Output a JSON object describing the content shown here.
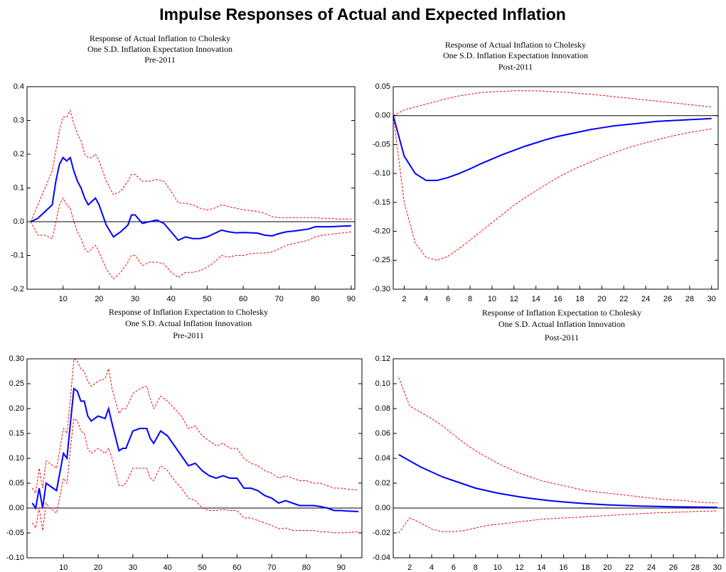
{
  "title": "Impulse Responses of Actual and Expected Inflation",
  "chart_data": [
    {
      "type": "line",
      "title_lines": [
        "Response of Actual Inflation to Cholesky",
        "One S.D. Inflation Expectation Innovation",
        "Pre-2011"
      ],
      "x": [
        1,
        3,
        5,
        7,
        8,
        9,
        10,
        11,
        12,
        13,
        14,
        15,
        16,
        17,
        18,
        19,
        20,
        22,
        24,
        26,
        28,
        29,
        30,
        32,
        34,
        36,
        38,
        40,
        42,
        44,
        46,
        48,
        50,
        52,
        54,
        56,
        58,
        60,
        62,
        64,
        66,
        68,
        70,
        72,
        74,
        76,
        78,
        80,
        82,
        84,
        86,
        88,
        90
      ],
      "series": [
        {
          "color": "#ff0000",
          "dash": true,
          "values": [
            0,
            0.05,
            0.1,
            0.15,
            0.21,
            0.27,
            0.31,
            0.31,
            0.33,
            0.29,
            0.26,
            0.24,
            0.2,
            0.19,
            0.19,
            0.2,
            0.18,
            0.12,
            0.08,
            0.09,
            0.12,
            0.14,
            0.14,
            0.12,
            0.12,
            0.125,
            0.12,
            0.09,
            0.055,
            0.055,
            0.05,
            0.04,
            0.035,
            0.04,
            0.05,
            0.045,
            0.04,
            0.035,
            0.033,
            0.03,
            0.025,
            0.015,
            0.012,
            0.012,
            0.012,
            0.012,
            0.012,
            0.012,
            0.01,
            0.01,
            0.008,
            0.008,
            0.008
          ]
        },
        {
          "color": "#ff0000",
          "dash": true,
          "values": [
            0,
            -0.04,
            -0.04,
            -0.05,
            0,
            0.05,
            0.07,
            0.05,
            0.04,
            0,
            -0.03,
            -0.05,
            -0.08,
            -0.09,
            -0.08,
            -0.07,
            -0.09,
            -0.14,
            -0.17,
            -0.15,
            -0.12,
            -0.1,
            -0.1,
            -0.13,
            -0.12,
            -0.12,
            -0.125,
            -0.15,
            -0.165,
            -0.15,
            -0.15,
            -0.145,
            -0.135,
            -0.12,
            -0.1,
            -0.105,
            -0.1,
            -0.1,
            -0.095,
            -0.093,
            -0.093,
            -0.09,
            -0.08,
            -0.07,
            -0.065,
            -0.06,
            -0.055,
            -0.045,
            -0.04,
            -0.038,
            -0.035,
            -0.033,
            -0.03
          ]
        },
        {
          "color": "#0000ff",
          "dash": false,
          "values": [
            0,
            0.01,
            0.03,
            0.05,
            0.12,
            0.17,
            0.19,
            0.18,
            0.19,
            0.15,
            0.12,
            0.1,
            0.07,
            0.05,
            0.06,
            0.07,
            0.05,
            -0.01,
            -0.045,
            -0.03,
            -0.01,
            0.02,
            0.02,
            -0.005,
            0,
            0.005,
            -0.005,
            -0.03,
            -0.055,
            -0.045,
            -0.05,
            -0.05,
            -0.045,
            -0.035,
            -0.025,
            -0.03,
            -0.033,
            -0.032,
            -0.033,
            -0.034,
            -0.04,
            -0.042,
            -0.035,
            -0.03,
            -0.028,
            -0.025,
            -0.022,
            -0.015,
            -0.015,
            -0.015,
            -0.014,
            -0.013,
            -0.012
          ]
        }
      ],
      "xlim": [
        0,
        91
      ],
      "xticks": [
        10,
        20,
        30,
        40,
        50,
        60,
        70,
        80,
        90
      ],
      "ylim": [
        -0.2,
        0.4
      ],
      "yticks": [
        0.4,
        0.3,
        0.2,
        0.1,
        {
          "value": 0,
          "label": "0.0"
        },
        -0.1,
        -0.2
      ],
      "zero_line": true
    },
    {
      "type": "line",
      "title_lines": [
        "Response of Actual Inflation to Cholesky",
        "One S.D. Inflation Expectation Innovation",
        "Post-2011"
      ],
      "x": [
        1,
        2,
        3,
        4,
        5,
        6,
        7,
        8,
        9,
        10,
        11,
        12,
        13,
        14,
        15,
        16,
        17,
        18,
        19,
        20,
        21,
        22,
        23,
        24,
        25,
        26,
        27,
        28,
        29,
        30
      ],
      "series": [
        {
          "color": "#ff0000",
          "dash": true,
          "values": [
            0,
            0.01,
            0.015,
            0.02,
            0.025,
            0.03,
            0.034,
            0.037,
            0.04,
            0.041,
            0.042,
            0.043,
            0.043,
            0.043,
            0.042,
            0.041,
            0.04,
            0.038,
            0.037,
            0.035,
            0.033,
            0.031,
            0.029,
            0.027,
            0.025,
            0.023,
            0.021,
            0.019,
            0.017,
            0.015
          ]
        },
        {
          "color": "#ff0000",
          "dash": true,
          "values": [
            0,
            -0.15,
            -0.22,
            -0.245,
            -0.25,
            -0.243,
            -0.23,
            -0.215,
            -0.2,
            -0.185,
            -0.17,
            -0.155,
            -0.142,
            -0.13,
            -0.118,
            -0.107,
            -0.097,
            -0.088,
            -0.08,
            -0.072,
            -0.065,
            -0.058,
            -0.052,
            -0.047,
            -0.042,
            -0.037,
            -0.033,
            -0.029,
            -0.026,
            -0.023
          ]
        },
        {
          "color": "#0000ff",
          "dash": false,
          "values": [
            0,
            -0.07,
            -0.1,
            -0.112,
            -0.112,
            -0.107,
            -0.1,
            -0.092,
            -0.083,
            -0.075,
            -0.067,
            -0.06,
            -0.053,
            -0.047,
            -0.041,
            -0.036,
            -0.032,
            -0.028,
            -0.024,
            -0.021,
            -0.018,
            -0.016,
            -0.014,
            -0.012,
            -0.01,
            -0.009,
            -0.008,
            -0.007,
            -0.006,
            -0.005
          ]
        }
      ],
      "xlim": [
        1,
        30.6
      ],
      "xticks": [
        2,
        4,
        6,
        8,
        10,
        12,
        14,
        16,
        18,
        20,
        22,
        24,
        26,
        28,
        30
      ],
      "ylim": [
        -0.3,
        0.05
      ],
      "yticks": [
        0.05,
        {
          "value": 0,
          "label": "0.00"
        },
        -0.05,
        {
          "value": -0.1,
          "label": "-0.10"
        },
        -0.15,
        {
          "value": -0.2,
          "label": "-0.20"
        },
        -0.25,
        {
          "value": -0.3,
          "label": "-0.30"
        }
      ],
      "zero_line": true
    },
    {
      "type": "line",
      "title_lines": [
        "Response of Inflation Expectation to Cholesky",
        "One S.D. Actual Inflation Innovation",
        "Pre-2011"
      ],
      "x": [
        1,
        2,
        3,
        4,
        5,
        6,
        8,
        10,
        11,
        12,
        13,
        14,
        15,
        16,
        17,
        18,
        20,
        22,
        23,
        24,
        26,
        27,
        28,
        30,
        32,
        34,
        35,
        36,
        38,
        40,
        42,
        44,
        46,
        48,
        50,
        52,
        54,
        56,
        58,
        60,
        62,
        64,
        66,
        68,
        70,
        72,
        74,
        76,
        78,
        80,
        82,
        84,
        86,
        88,
        90,
        92,
        95
      ],
      "series": [
        {
          "color": "#ff0000",
          "dash": true,
          "values": [
            0.04,
            0.03,
            0.08,
            0.04,
            0.095,
            0.09,
            0.08,
            0.16,
            0.15,
            0.22,
            0.3,
            0.295,
            0.28,
            0.275,
            0.255,
            0.245,
            0.255,
            0.26,
            0.28,
            0.24,
            0.19,
            0.2,
            0.2,
            0.23,
            0.24,
            0.245,
            0.22,
            0.2,
            0.225,
            0.215,
            0.2,
            0.185,
            0.16,
            0.165,
            0.145,
            0.135,
            0.125,
            0.13,
            0.12,
            0.12,
            0.1,
            0.09,
            0.085,
            0.075,
            0.07,
            0.06,
            0.065,
            0.06,
            0.055,
            0.055,
            0.05,
            0.05,
            0.045,
            0.04,
            0.04,
            0.038,
            0.036
          ]
        },
        {
          "color": "#ff0000",
          "dash": true,
          "values": [
            -0.03,
            -0.04,
            0,
            -0.045,
            0.01,
            0,
            -0.01,
            0.06,
            0.05,
            0.12,
            0.18,
            0.175,
            0.155,
            0.15,
            0.12,
            0.11,
            0.12,
            0.11,
            0.12,
            0.1,
            0.045,
            0.045,
            0.05,
            0.08,
            0.08,
            0.08,
            0.06,
            0.055,
            0.085,
            0.075,
            0.055,
            0.04,
            0.02,
            0.015,
            0,
            -0.005,
            -0.005,
            -0.003,
            -0.005,
            -0.005,
            -0.02,
            -0.02,
            -0.025,
            -0.03,
            -0.035,
            -0.042,
            -0.04,
            -0.045,
            -0.045,
            -0.045,
            -0.045,
            -0.048,
            -0.048,
            -0.05,
            -0.05,
            -0.049,
            -0.048
          ]
        },
        {
          "color": "#0000ff",
          "dash": false,
          "values": [
            0.01,
            0,
            0.04,
            0,
            0.05,
            0.045,
            0.035,
            0.11,
            0.1,
            0.17,
            0.24,
            0.235,
            0.215,
            0.215,
            0.185,
            0.175,
            0.185,
            0.18,
            0.2,
            0.17,
            0.115,
            0.12,
            0.12,
            0.155,
            0.16,
            0.16,
            0.14,
            0.13,
            0.155,
            0.145,
            0.125,
            0.105,
            0.085,
            0.09,
            0.075,
            0.065,
            0.06,
            0.065,
            0.06,
            0.06,
            0.04,
            0.04,
            0.035,
            0.025,
            0.02,
            0.01,
            0.015,
            0.01,
            0.005,
            0.005,
            0.005,
            0.003,
            0,
            -0.005,
            -0.005,
            -0.006,
            -0.007
          ]
        }
      ],
      "xlim": [
        -0.5,
        96
      ],
      "xticks": [
        10,
        20,
        30,
        40,
        50,
        60,
        70,
        80,
        90
      ],
      "ylim": [
        -0.1,
        0.3
      ],
      "yticks": [
        {
          "value": 0.3,
          "label": "0.30"
        },
        0.25,
        {
          "value": 0.2,
          "label": "0.20"
        },
        0.15,
        {
          "value": 0.1,
          "label": "0.10"
        },
        0.05,
        {
          "value": 0,
          "label": "0.00"
        },
        -0.05,
        {
          "value": -0.1,
          "label": "-0.10"
        }
      ],
      "zero_line": true
    },
    {
      "type": "line",
      "title_lines": [
        "Response of Inflation Expectation to Cholesky",
        "One S.D. Actual Inflation Innovation",
        "Post-2011"
      ],
      "x": [
        1,
        2,
        3,
        4,
        5,
        6,
        7,
        8,
        9,
        10,
        11,
        12,
        13,
        14,
        15,
        16,
        17,
        18,
        19,
        20,
        21,
        22,
        23,
        24,
        25,
        26,
        27,
        28,
        29,
        30
      ],
      "series": [
        {
          "color": "#ff0000",
          "dash": true,
          "values": [
            0.105,
            0.082,
            0.077,
            0.072,
            0.066,
            0.059,
            0.052,
            0.046,
            0.041,
            0.036,
            0.032,
            0.028,
            0.025,
            0.022,
            0.02,
            0.018,
            0.016,
            0.014,
            0.013,
            0.012,
            0.011,
            0.01,
            0.009,
            0.008,
            0.007,
            0.0065,
            0.006,
            0.005,
            0.0045,
            0.004
          ]
        },
        {
          "color": "#ff0000",
          "dash": true,
          "values": [
            -0.02,
            -0.008,
            -0.012,
            -0.017,
            -0.019,
            -0.019,
            -0.018,
            -0.016,
            -0.014,
            -0.013,
            -0.012,
            -0.011,
            -0.01,
            -0.009,
            -0.0085,
            -0.008,
            -0.0075,
            -0.007,
            -0.0065,
            -0.006,
            -0.0055,
            -0.005,
            -0.0045,
            -0.004,
            -0.0037,
            -0.0034,
            -0.0031,
            -0.0028,
            -0.0025,
            -0.0023
          ]
        },
        {
          "color": "#0000ff",
          "dash": false,
          "values": [
            0.043,
            0.038,
            0.033,
            0.029,
            0.025,
            0.022,
            0.019,
            0.016,
            0.014,
            0.012,
            0.0105,
            0.009,
            0.0078,
            0.0067,
            0.0057,
            0.0049,
            0.0042,
            0.0036,
            0.0031,
            0.0026,
            0.0022,
            0.0019,
            0.0016,
            0.0014,
            0.0012,
            0.001,
            0.0009,
            0.0008,
            0.0007,
            0.0006
          ]
        }
      ],
      "xlim": [
        0.5,
        30.6
      ],
      "xticks": [
        2,
        4,
        6,
        8,
        10,
        12,
        14,
        16,
        18,
        20,
        22,
        24,
        26,
        28,
        30
      ],
      "ylim": [
        -0.04,
        0.12
      ],
      "yticks": [
        0.12,
        {
          "value": 0.1,
          "label": "0.10"
        },
        0.08,
        0.06,
        0.04,
        0.02,
        {
          "value": 0,
          "label": "0.00"
        },
        -0.02,
        -0.04
      ],
      "zero_line": true
    }
  ]
}
